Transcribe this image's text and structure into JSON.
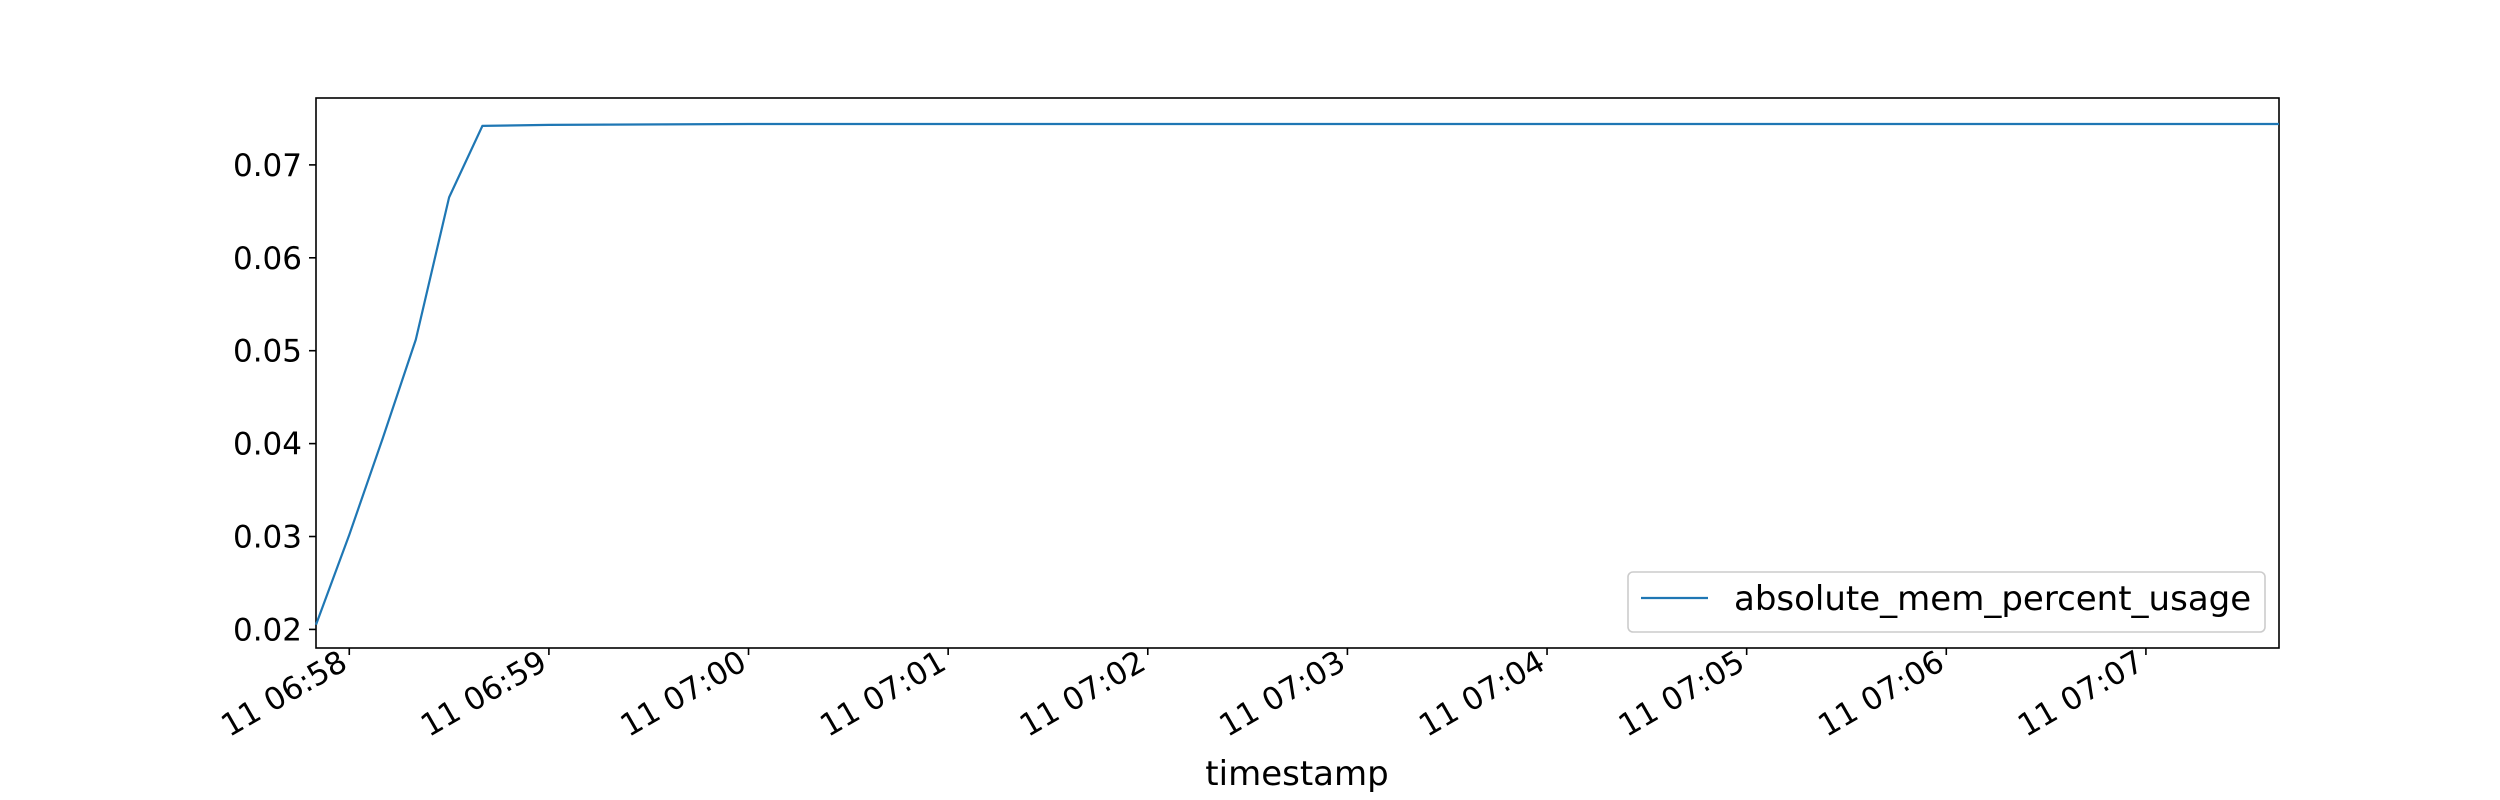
{
  "chart_data": {
    "type": "line",
    "title": "",
    "xlabel": "timestamp",
    "ylabel": "",
    "x_tick_labels": [
      "11 06:58",
      "11 06:59",
      "11 07:00",
      "11 07:01",
      "11 07:02",
      "11 07:03",
      "11 07:04",
      "11 07:05",
      "11 07:06",
      "11 07:07"
    ],
    "y_ticks": [
      0.02,
      0.03,
      0.04,
      0.05,
      0.06,
      0.07
    ],
    "y_tick_labels": [
      "0.02",
      "0.03",
      "0.04",
      "0.05",
      "0.06",
      "0.07"
    ],
    "xlim": [
      "06:57:50",
      "07:07:40"
    ],
    "ylim": [
      0.018,
      0.0772
    ],
    "grid": false,
    "legend_position": "lower-right",
    "series": [
      {
        "name": "absolute_mem_percent_usage",
        "color": "#1f77b4",
        "x": [
          "06:57:50",
          "06:58:00",
          "06:58:10",
          "06:58:20",
          "06:58:30",
          "06:58:40",
          "06:59:00",
          "07:00:00",
          "07:01:00",
          "07:02:00",
          "07:03:00",
          "07:04:00",
          "07:05:00",
          "07:06:00",
          "07:07:00",
          "07:07:40"
        ],
        "values": [
          0.0205,
          0.0302,
          0.0405,
          0.0512,
          0.0665,
          0.0742,
          0.0743,
          0.0744,
          0.0744,
          0.0744,
          0.0744,
          0.0744,
          0.0744,
          0.0744,
          0.0744,
          0.0744
        ]
      }
    ]
  }
}
